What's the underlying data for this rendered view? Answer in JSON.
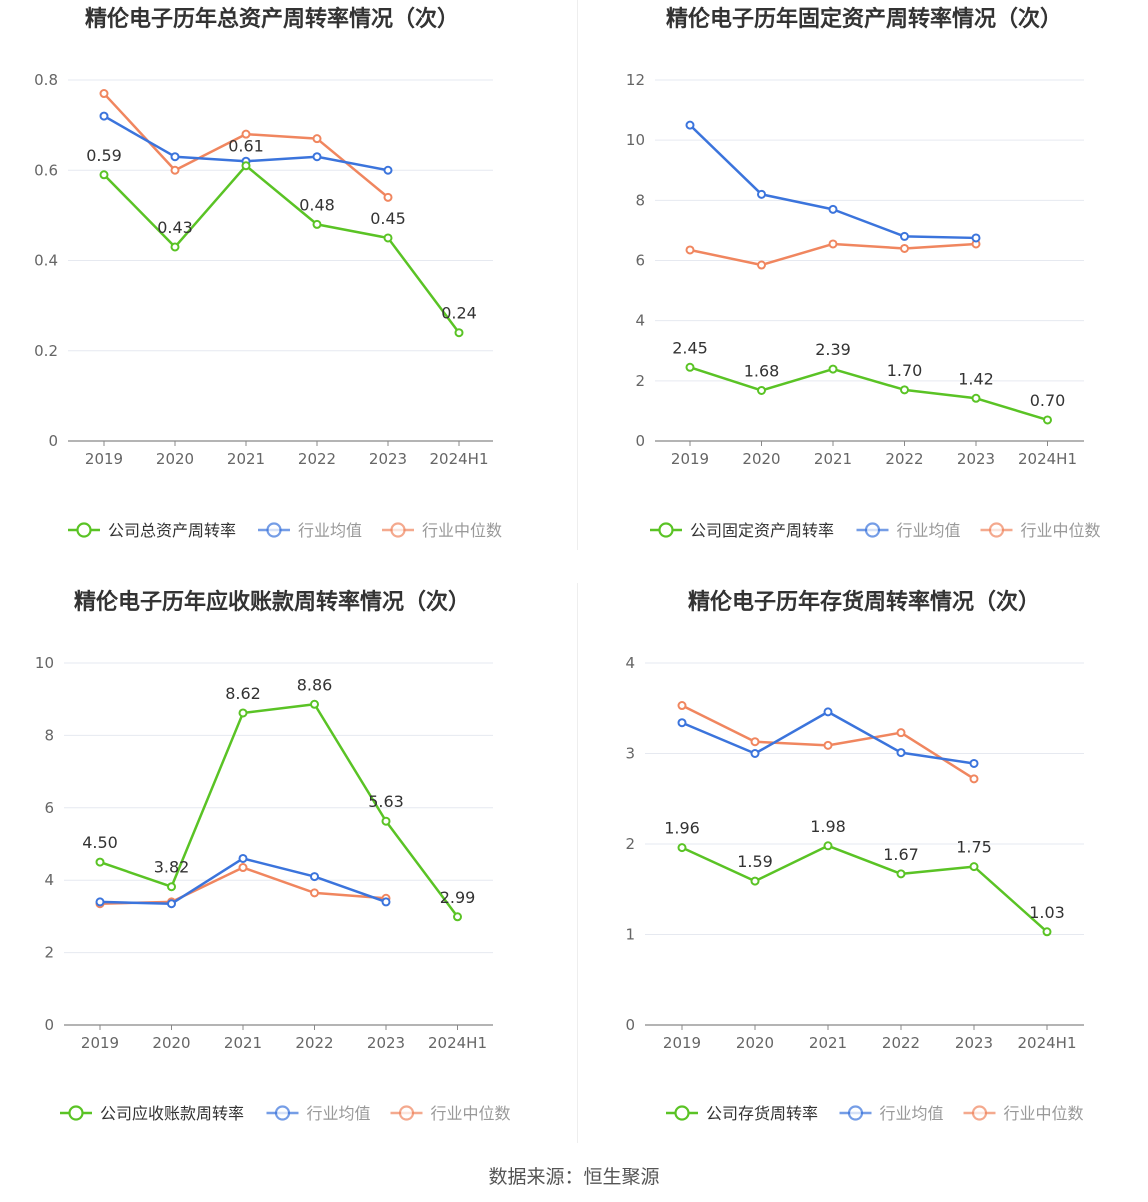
{
  "colors": {
    "company": "#5ac325",
    "average": "#3b74dc",
    "median": "#f0865f",
    "axis_text": "#666666",
    "title": "#333333",
    "grid": "#e6e9f0",
    "label": "#333333"
  },
  "source": "数据来源：恒生聚源",
  "chart_data": [
    {
      "type": "line",
      "title": "精伦电子历年总资产周转率情况（次）",
      "categories": [
        "2019",
        "2020",
        "2021",
        "2022",
        "2023",
        "2024H1"
      ],
      "ylim": [
        0,
        0.8
      ],
      "yticks": [
        0,
        0.2,
        0.4,
        0.6,
        0.8
      ],
      "ytick_labels": [
        "0",
        "0.2",
        "0.4",
        "0.6",
        "0.8"
      ],
      "series": [
        {
          "name": "公司总资产周转率",
          "role": "company",
          "values": [
            0.59,
            0.43,
            0.61,
            0.48,
            0.45,
            0.24
          ],
          "labels": [
            "0.59",
            "0.43",
            "0.61",
            "0.48",
            "0.45",
            "0.24"
          ]
        },
        {
          "name": "行业均值",
          "role": "average",
          "values": [
            0.72,
            0.63,
            0.62,
            0.63,
            0.6,
            null
          ]
        },
        {
          "name": "行业中位数",
          "role": "median",
          "values": [
            0.77,
            0.6,
            0.68,
            0.67,
            0.54,
            null
          ]
        }
      ]
    },
    {
      "type": "line",
      "title": "精伦电子历年固定资产周转率情况（次）",
      "categories": [
        "2019",
        "2020",
        "2021",
        "2022",
        "2023",
        "2024H1"
      ],
      "ylim": [
        0,
        12
      ],
      "yticks": [
        0,
        2,
        4,
        6,
        8,
        10,
        12
      ],
      "ytick_labels": [
        "0",
        "2",
        "4",
        "6",
        "8",
        "10",
        "12"
      ],
      "series": [
        {
          "name": "公司固定资产周转率",
          "role": "company",
          "values": [
            2.45,
            1.68,
            2.39,
            1.7,
            1.42,
            0.7
          ],
          "labels": [
            "2.45",
            "1.68",
            "2.39",
            "1.70",
            "1.42",
            "0.70"
          ]
        },
        {
          "name": "行业均值",
          "role": "average",
          "values": [
            10.5,
            8.2,
            7.7,
            6.8,
            6.75,
            null
          ]
        },
        {
          "name": "行业中位数",
          "role": "median",
          "values": [
            6.35,
            5.85,
            6.55,
            6.4,
            6.55,
            null
          ]
        }
      ]
    },
    {
      "type": "line",
      "title": "精伦电子历年应收账款周转率情况（次）",
      "categories": [
        "2019",
        "2020",
        "2021",
        "2022",
        "2023",
        "2024H1"
      ],
      "ylim": [
        0,
        10
      ],
      "yticks": [
        0,
        2,
        4,
        6,
        8,
        10
      ],
      "ytick_labels": [
        "0",
        "2",
        "4",
        "6",
        "8",
        "10"
      ],
      "series": [
        {
          "name": "公司应收账款周转率",
          "role": "company",
          "values": [
            4.5,
            3.82,
            8.62,
            8.86,
            5.63,
            2.99
          ],
          "labels": [
            "4.50",
            "3.82",
            "8.62",
            "8.86",
            "5.63",
            "2.99"
          ]
        },
        {
          "name": "行业均值",
          "role": "average",
          "values": [
            3.4,
            3.35,
            4.6,
            4.1,
            3.4,
            null
          ]
        },
        {
          "name": "行业中位数",
          "role": "median",
          "values": [
            3.35,
            3.4,
            4.35,
            3.65,
            3.5,
            null
          ]
        }
      ]
    },
    {
      "type": "line",
      "title": "精伦电子历年存货周转率情况（次）",
      "categories": [
        "2019",
        "2020",
        "2021",
        "2022",
        "2023",
        "2024H1"
      ],
      "ylim": [
        0,
        4
      ],
      "yticks": [
        0,
        1,
        2,
        3,
        4
      ],
      "ytick_labels": [
        "0",
        "1",
        "2",
        "3",
        "4"
      ],
      "series": [
        {
          "name": "公司存货周转率",
          "role": "company",
          "values": [
            1.96,
            1.59,
            1.98,
            1.67,
            1.75,
            1.03
          ],
          "labels": [
            "1.96",
            "1.59",
            "1.98",
            "1.67",
            "1.75",
            "1.03"
          ]
        },
        {
          "name": "行业均值",
          "role": "average",
          "values": [
            3.34,
            3.0,
            3.46,
            3.01,
            2.89,
            null
          ]
        },
        {
          "name": "行业中位数",
          "role": "median",
          "values": [
            3.53,
            3.13,
            3.09,
            3.23,
            2.72,
            null
          ]
        }
      ]
    }
  ]
}
